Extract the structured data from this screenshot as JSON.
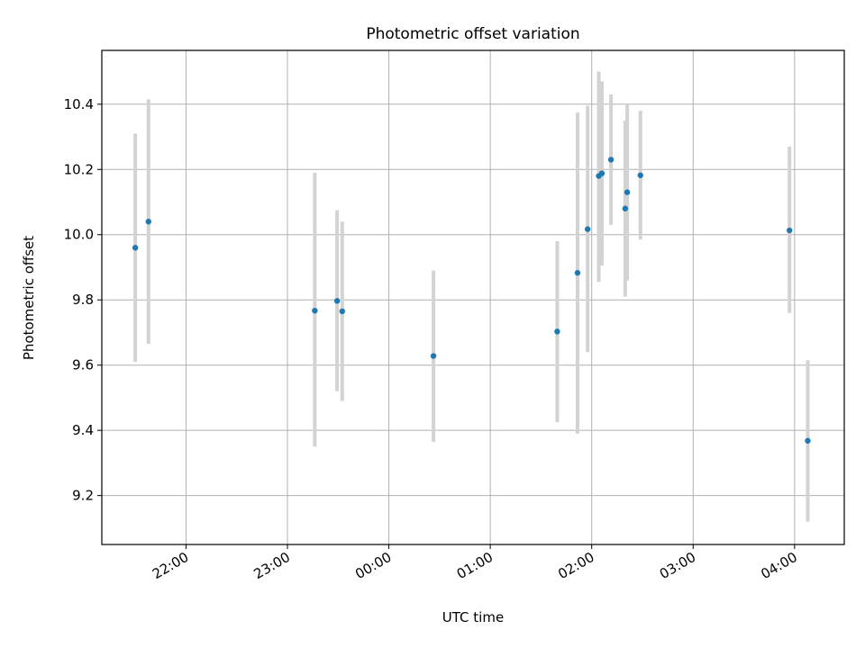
{
  "chart_data": {
    "type": "scatter",
    "title": "Photometric offset variation",
    "xlabel": "UTC time",
    "ylabel": "Photometric offset",
    "x_unit": "UTC time of day (hours, times after midnight continue past 24:00)",
    "xlim": [
      21.17,
      28.49
    ],
    "ylim": [
      9.05,
      10.565
    ],
    "x_ticks": [
      {
        "value": 22,
        "label": "22:00"
      },
      {
        "value": 23,
        "label": "23:00"
      },
      {
        "value": 24,
        "label": "00:00"
      },
      {
        "value": 25,
        "label": "01:00"
      },
      {
        "value": 26,
        "label": "02:00"
      },
      {
        "value": 27,
        "label": "03:00"
      },
      {
        "value": 28,
        "label": "04:00"
      }
    ],
    "y_ticks": [
      {
        "value": 9.2,
        "label": "9.2"
      },
      {
        "value": 9.4,
        "label": "9.4"
      },
      {
        "value": 9.6,
        "label": "9.6"
      },
      {
        "value": 9.8,
        "label": "9.8"
      },
      {
        "value": 10.0,
        "label": "10.0"
      },
      {
        "value": 10.2,
        "label": "10.2"
      },
      {
        "value": 10.4,
        "label": "10.4"
      }
    ],
    "grid": true,
    "legend": "none",
    "marker_color": "#1f77b4",
    "errorbar_color": "#d3d3d3",
    "series": [
      {
        "points": [
          {
            "x": 21.5,
            "y": 9.96,
            "lo": 9.61,
            "hi": 10.31
          },
          {
            "x": 21.63,
            "y": 10.04,
            "lo": 9.665,
            "hi": 10.415
          },
          {
            "x": 23.27,
            "y": 9.767,
            "lo": 9.35,
            "hi": 10.19
          },
          {
            "x": 23.49,
            "y": 9.797,
            "lo": 9.52,
            "hi": 10.075
          },
          {
            "x": 23.54,
            "y": 9.765,
            "lo": 9.49,
            "hi": 10.04
          },
          {
            "x": 24.44,
            "y": 9.628,
            "lo": 9.365,
            "hi": 9.89
          },
          {
            "x": 25.66,
            "y": 9.703,
            "lo": 9.425,
            "hi": 9.98
          },
          {
            "x": 25.86,
            "y": 9.883,
            "lo": 9.39,
            "hi": 10.375
          },
          {
            "x": 25.96,
            "y": 10.017,
            "lo": 9.64,
            "hi": 10.395
          },
          {
            "x": 26.07,
            "y": 10.18,
            "lo": 9.855,
            "hi": 10.5
          },
          {
            "x": 26.1,
            "y": 10.188,
            "lo": 9.905,
            "hi": 10.47
          },
          {
            "x": 26.19,
            "y": 10.23,
            "lo": 10.03,
            "hi": 10.43
          },
          {
            "x": 26.33,
            "y": 10.08,
            "lo": 9.81,
            "hi": 10.35
          },
          {
            "x": 26.35,
            "y": 10.13,
            "lo": 9.86,
            "hi": 10.4
          },
          {
            "x": 26.48,
            "y": 10.182,
            "lo": 9.985,
            "hi": 10.38
          },
          {
            "x": 27.95,
            "y": 10.013,
            "lo": 9.76,
            "hi": 10.27
          },
          {
            "x": 28.13,
            "y": 9.368,
            "lo": 9.12,
            "hi": 9.615
          }
        ]
      }
    ]
  }
}
